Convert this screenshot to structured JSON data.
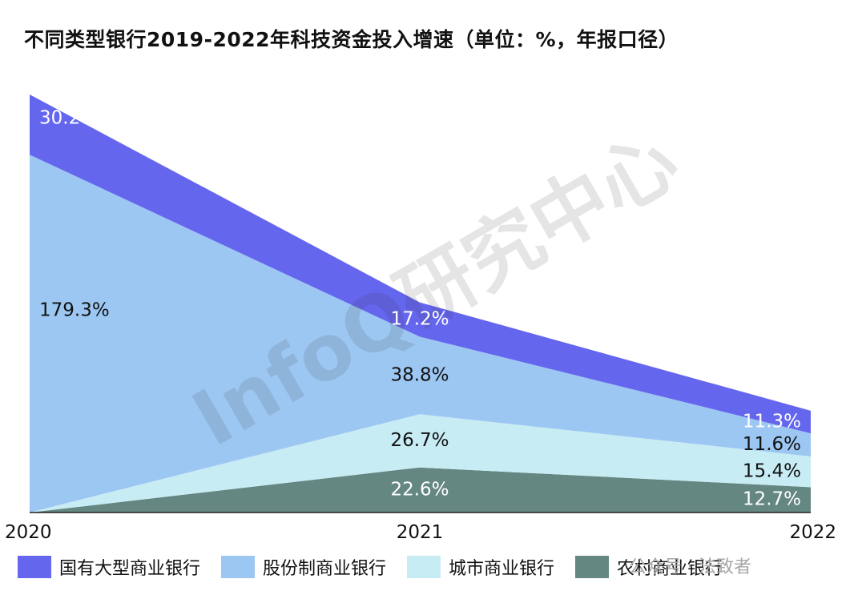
{
  "title": "不同类型银行2019-2022年科技资金投入增速（单位：%，年报口径）",
  "watermark": "公众号 · 法致者",
  "chart_data": {
    "type": "area",
    "stacked": true,
    "title": "不同类型银行2019-2022年科技资金投入增速（单位：%，年报口径）",
    "unit": "%",
    "x": [
      "2020",
      "2021",
      "2022"
    ],
    "series": [
      {
        "name": "农村商业银行",
        "values": [
          0.0,
          22.6,
          12.7
        ],
        "labels": [
          "",
          "22.6%",
          "12.7%"
        ],
        "color": "#658781",
        "label_color": "#ffffff"
      },
      {
        "name": "城市商业银行",
        "values": [
          0.0,
          26.7,
          15.4
        ],
        "labels": [
          "",
          "26.7%",
          "15.4%"
        ],
        "color": "#c8ecf4",
        "label_color": "#111111"
      },
      {
        "name": "股份制商业银行",
        "values": [
          179.3,
          38.8,
          11.6
        ],
        "labels": [
          "179.3%",
          "38.8%",
          "11.6%"
        ],
        "color": "#9cc7f2",
        "label_color": "#111111"
      },
      {
        "name": "国有大型商业银行",
        "values": [
          30.2,
          17.2,
          11.3
        ],
        "labels": [
          "30.2%",
          "17.2%",
          "11.3%"
        ],
        "color": "#6566ee",
        "label_color": "#ffffff"
      }
    ],
    "legend_order": [
      "国有大型商业银行",
      "股份制商业银行",
      "城市商业银行",
      "农村商业银行"
    ],
    "ylim": [
      0,
      209.5
    ],
    "grid": false,
    "legend": "bottom"
  }
}
